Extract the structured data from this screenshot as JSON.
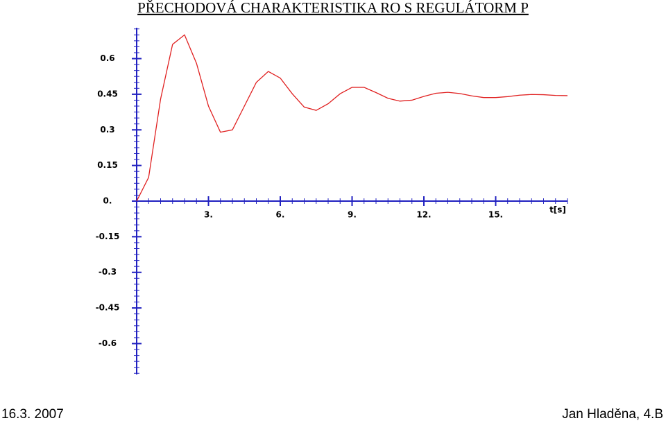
{
  "title": "PŘECHODOVÁ CHARAKTERISTIKA RO S REGULÁTORM P",
  "footer": {
    "date": "16.3. 2007",
    "author": "Jan Hladěna, 4.B"
  },
  "chart_data": {
    "type": "line",
    "x_label": "t[s]",
    "x": [
      0,
      0.5,
      1,
      1.5,
      2,
      2.5,
      3,
      3.5,
      4,
      4.5,
      5,
      5.5,
      6,
      6.5,
      7,
      7.5,
      8,
      8.5,
      9,
      9.5,
      10,
      10.5,
      11,
      11.5,
      12,
      12.5,
      13,
      13.5,
      14,
      14.5,
      15,
      15.5,
      16,
      16.5,
      17,
      17.5,
      18
    ],
    "series": [
      {
        "color": "#e02020",
        "values": [
          0,
          0.1,
          0.43,
          0.66,
          0.7,
          0.58,
          0.4,
          0.29,
          0.3,
          0.4,
          0.5,
          0.546,
          0.518,
          0.452,
          0.396,
          0.382,
          0.41,
          0.452,
          0.479,
          0.479,
          0.457,
          0.433,
          0.421,
          0.425,
          0.441,
          0.454,
          0.458,
          0.453,
          0.443,
          0.436,
          0.436,
          0.44,
          0.446,
          0.449,
          0.448,
          0.445,
          0.444
        ]
      }
    ],
    "xlim": [
      0,
      18
    ],
    "ylim": [
      -0.73,
      0.73
    ],
    "xticks": [
      {
        "value": 3,
        "label": "3."
      },
      {
        "value": 6,
        "label": "6."
      },
      {
        "value": 9,
        "label": "9."
      },
      {
        "value": 12,
        "label": "12."
      },
      {
        "value": 15,
        "label": "15."
      }
    ],
    "yticks": [
      -0.6,
      -0.45,
      -0.3,
      -0.15,
      {
        "value": 0,
        "label": "0."
      },
      0.15,
      0.3,
      0.45,
      0.6
    ],
    "axis_color": "#2020c0"
  }
}
